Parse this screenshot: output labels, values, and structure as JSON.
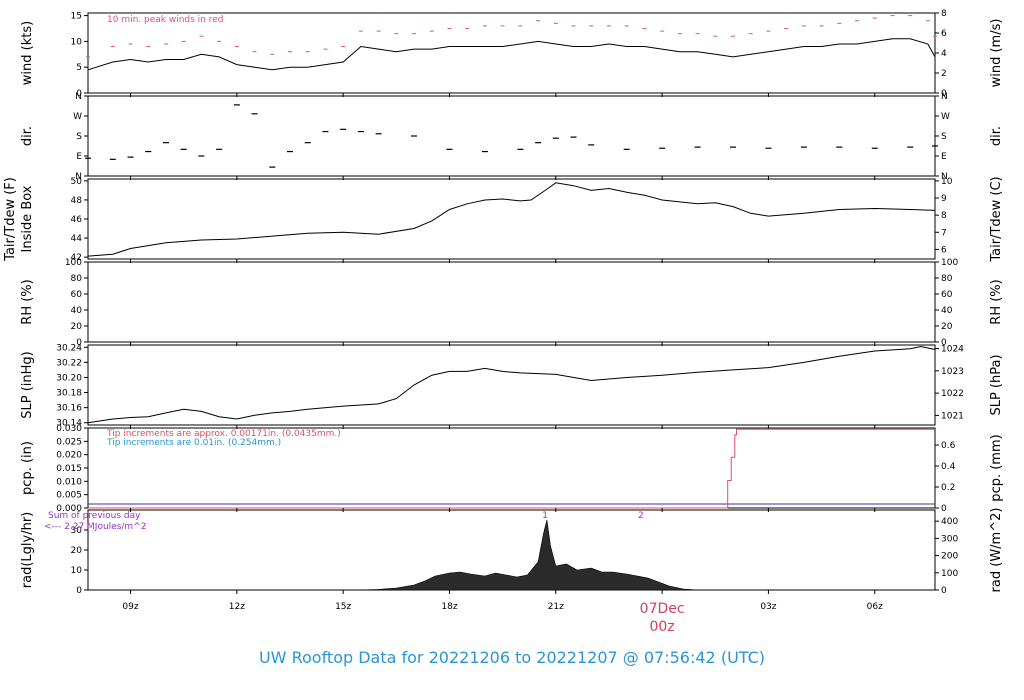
{
  "title": "UW Rooftop Data for 20221206  to  20221207 @ 07:56:42  (UTC)",
  "colors": {
    "peak": "#e0507a",
    "precip_red": "#e05060",
    "precip_blue": "#2a95d5",
    "purple": "#9b30d0",
    "date": "#d04060",
    "title": "#2a95d5"
  },
  "x_axis": {
    "range_hours": [
      7.8,
      31.7
    ],
    "ticks": [
      {
        "h": 9,
        "label": "09z"
      },
      {
        "h": 12,
        "label": "12z"
      },
      {
        "h": 15,
        "label": "15z"
      },
      {
        "h": 18,
        "label": "18z"
      },
      {
        "h": 21,
        "label": "21z"
      },
      {
        "h": 24,
        "label": ""
      },
      {
        "h": 27,
        "label": "03z"
      },
      {
        "h": 30,
        "label": "06z"
      }
    ],
    "date_label": "07Dec",
    "date_sublabel": "00z"
  },
  "chart_data": [
    {
      "id": "wind",
      "type": "line",
      "ylabel_left": "wind (kts)",
      "ylabel_right": "wind (m/s)",
      "ylim": [
        0,
        15.5
      ],
      "right_lim": [
        0,
        8
      ],
      "left_ticks": [
        "0",
        "5",
        "10",
        "15"
      ],
      "left_tick_values": [
        0,
        5,
        10,
        15
      ],
      "right_ticks": [
        "0",
        "2",
        "4",
        "6",
        "8"
      ],
      "right_tick_values": [
        0,
        2,
        4,
        6,
        8
      ],
      "annotation": "10 min. peak winds in red",
      "x": [
        7.8,
        8.5,
        9.0,
        9.5,
        10.0,
        10.5,
        11.0,
        11.5,
        12.0,
        12.5,
        13.0,
        13.5,
        14.0,
        14.5,
        15.0,
        15.5,
        16.0,
        16.5,
        17.0,
        17.5,
        18.0,
        18.5,
        19.0,
        19.5,
        20.0,
        20.5,
        21.0,
        21.5,
        22.0,
        22.5,
        23.0,
        23.5,
        24.0,
        24.5,
        25.0,
        25.5,
        26.0,
        26.5,
        27.0,
        27.5,
        28.0,
        28.5,
        29.0,
        29.5,
        30.0,
        30.5,
        31.0,
        31.5,
        31.7
      ],
      "values": [
        4.5,
        6,
        6.5,
        6,
        6.5,
        6.5,
        7.5,
        7,
        5.5,
        5,
        4.5,
        5,
        5,
        5.5,
        6,
        9,
        8.5,
        8,
        8.5,
        8.5,
        9,
        9,
        9,
        9,
        9.5,
        10,
        9.5,
        9,
        9,
        9.5,
        9,
        9,
        8.5,
        8,
        8,
        7.5,
        7,
        7.5,
        8,
        8.5,
        9,
        9,
        9.5,
        9.5,
        10,
        10.5,
        10.5,
        9.5,
        7
      ],
      "peak_values": [
        7,
        9,
        9.5,
        9,
        9.5,
        10,
        11,
        10,
        9,
        8,
        7.5,
        8,
        8,
        8.5,
        9,
        12,
        12,
        11.5,
        11.5,
        12,
        12.5,
        12.5,
        13,
        13,
        13,
        14,
        13.5,
        13,
        13,
        13,
        13,
        12.5,
        12,
        11.5,
        11.5,
        11,
        11,
        11.5,
        12,
        12.5,
        13,
        13,
        13.5,
        14,
        14.5,
        15,
        15,
        14,
        11
      ]
    },
    {
      "id": "dir",
      "type": "scatter",
      "ylabel_left": "dir.",
      "ylabel_right": "dir.",
      "ylim": [
        0,
        360
      ],
      "left_ticks": [
        "N",
        "E",
        "S",
        "W",
        "N"
      ],
      "left_tick_values": [
        0,
        90,
        180,
        270,
        360
      ],
      "x": [
        7.8,
        8.5,
        9.0,
        9.5,
        10.0,
        10.5,
        11.0,
        11.5,
        12.0,
        12.5,
        13.0,
        13.5,
        14.0,
        14.5,
        15.0,
        15.5,
        16.0,
        17.0,
        18.0,
        19.0,
        20.0,
        20.5,
        21.0,
        21.5,
        22.0,
        23.0,
        24.0,
        25.0,
        26.0,
        27.0,
        28.0,
        29.0,
        30.0,
        31.0,
        31.7
      ],
      "values": [
        80,
        75,
        85,
        110,
        150,
        120,
        90,
        120,
        320,
        280,
        40,
        110,
        150,
        200,
        210,
        200,
        190,
        180,
        120,
        110,
        120,
        150,
        170,
        175,
        140,
        120,
        125,
        130,
        130,
        125,
        130,
        130,
        125,
        130,
        135
      ]
    },
    {
      "id": "temp",
      "type": "line",
      "ylabel_left": "Tair/Tdew (F)",
      "ylabel_left2": "Inside Box",
      "ylabel_right": "Tair/Tdew (C)",
      "ylim": [
        41.8,
        50.2
      ],
      "right_lim": [
        5.44,
        10.11
      ],
      "left_ticks": [
        "42",
        "44",
        "46",
        "48",
        "50"
      ],
      "left_tick_values": [
        42,
        44,
        46,
        48,
        50
      ],
      "right_ticks": [
        "6",
        "7",
        "8",
        "9",
        "10"
      ],
      "right_tick_values": [
        6,
        7,
        8,
        9,
        10
      ],
      "x": [
        7.8,
        8.5,
        9.0,
        10.0,
        11.0,
        12.0,
        13.0,
        14.0,
        15.0,
        16.0,
        17.0,
        17.5,
        18.0,
        18.5,
        19.0,
        19.5,
        20.0,
        20.3,
        20.7,
        21.0,
        21.5,
        22.0,
        22.5,
        23.0,
        23.5,
        24.0,
        24.5,
        25.0,
        25.5,
        26.0,
        26.5,
        27.0,
        28.0,
        29.0,
        30.0,
        31.0,
        31.7
      ],
      "values": [
        42.1,
        42.3,
        42.9,
        43.5,
        43.8,
        43.9,
        44.2,
        44.5,
        44.6,
        44.4,
        45.0,
        45.8,
        47.0,
        47.6,
        48.0,
        48.1,
        47.9,
        48.0,
        49.0,
        49.8,
        49.5,
        49.0,
        49.2,
        48.8,
        48.5,
        48.0,
        47.8,
        47.6,
        47.7,
        47.3,
        46.6,
        46.3,
        46.6,
        47.0,
        47.1,
        47.0,
        46.9
      ]
    },
    {
      "id": "rh",
      "type": "line",
      "ylabel_left": "RH (%)",
      "ylabel_right": "RH (%)",
      "ylim": [
        0,
        100
      ],
      "left_ticks": [
        "0",
        "20",
        "40",
        "60",
        "80",
        "100"
      ],
      "left_tick_values": [
        0,
        20,
        40,
        60,
        80,
        100
      ],
      "right_ticks": [
        "0",
        "20",
        "40",
        "60",
        "80",
        "100"
      ],
      "right_tick_values": [
        0,
        20,
        40,
        60,
        80,
        100
      ],
      "x": [],
      "values": []
    },
    {
      "id": "slp",
      "type": "line",
      "ylabel_left": "SLP (inHg)",
      "ylabel_right": "SLP (hPa)",
      "ylim": [
        30.137,
        30.243
      ],
      "right_lim": [
        1020.57,
        1024.16
      ],
      "left_ticks": [
        "30.14",
        "30.16",
        "30.18",
        "30.20",
        "30.22",
        "30.24"
      ],
      "left_tick_values": [
        30.14,
        30.16,
        30.18,
        30.2,
        30.22,
        30.24
      ],
      "right_ticks": [
        "1021",
        "1022",
        "1023",
        "1024"
      ],
      "right_tick_values": [
        1021,
        1022,
        1023,
        1024
      ],
      "x": [
        7.8,
        8.5,
        9.0,
        9.5,
        10.0,
        10.5,
        11.0,
        11.5,
        12.0,
        12.5,
        13.0,
        13.5,
        14.0,
        15.0,
        16.0,
        16.5,
        17.0,
        17.5,
        18.0,
        18.5,
        19.0,
        19.5,
        20.0,
        21.0,
        22.0,
        23.0,
        24.0,
        25.0,
        26.0,
        27.0,
        28.0,
        29.0,
        30.0,
        31.0,
        31.3,
        31.7
      ],
      "values": [
        30.14,
        30.145,
        30.147,
        30.148,
        30.153,
        30.158,
        30.155,
        30.148,
        30.145,
        30.15,
        30.153,
        30.155,
        30.158,
        30.162,
        30.165,
        30.172,
        30.19,
        30.203,
        30.208,
        30.208,
        30.212,
        30.208,
        30.206,
        30.204,
        30.196,
        30.2,
        30.203,
        30.207,
        30.21,
        30.213,
        30.22,
        30.228,
        30.235,
        30.238,
        30.241,
        30.237
      ]
    },
    {
      "id": "precip",
      "type": "line",
      "ylabel_left": "pcp. (in)",
      "ylabel_right": "pcp. (mm)",
      "ylim": [
        0,
        0.03
      ],
      "right_lim": [
        0,
        0.762
      ],
      "left_ticks": [
        "0.000",
        "0.005",
        "0.010",
        "0.015",
        "0.020",
        "0.025",
        "0.030"
      ],
      "left_tick_values": [
        0,
        0.005,
        0.01,
        0.015,
        0.02,
        0.025,
        0.03
      ],
      "right_ticks": [
        "0",
        "0.2",
        "0.4",
        "0.6"
      ],
      "right_tick_values": [
        0,
        0.2,
        0.4,
        0.6
      ],
      "annotation_red": "Tip increments are approx. 0.00171in. (0.0435mm.)",
      "annotation_blue": "Tip increments are 0.01in. (0.254mm.)",
      "x": [
        7.8,
        25.85,
        25.85,
        25.95,
        25.95,
        26.05,
        26.05,
        26.1,
        26.1,
        31.7
      ],
      "values": [
        0,
        0,
        0.0103,
        0.0103,
        0.019,
        0.019,
        0.0275,
        0.0275,
        0.0295,
        0.0295
      ]
    },
    {
      "id": "rad",
      "type": "area",
      "ylabel_left": "rad(Lgly/hr)",
      "ylabel_right": "rad (W/m^2)",
      "ylim": [
        0,
        40
      ],
      "right_lim": [
        0,
        465
      ],
      "left_ticks": [
        "0",
        "10",
        "20",
        "30"
      ],
      "left_tick_values": [
        0,
        10,
        20,
        30
      ],
      "right_ticks": [
        "0",
        "100",
        "200",
        "300",
        "400"
      ],
      "right_tick_values": [
        0,
        100,
        200,
        300,
        400
      ],
      "annotation_purple1": "Sum of previous day",
      "annotation_purple2": "<--- 2.27 MJoules/m^2",
      "marker_labels": [
        {
          "h": 20.7,
          "label": "1"
        },
        {
          "h": 23.4,
          "label": "2"
        }
      ],
      "x": [
        15.4,
        16.0,
        16.5,
        17.0,
        17.3,
        17.6,
        18.0,
        18.3,
        18.6,
        19.0,
        19.3,
        19.6,
        19.9,
        20.2,
        20.5,
        20.65,
        20.75,
        20.85,
        21.0,
        21.3,
        21.6,
        22.0,
        22.3,
        22.6,
        23.0,
        23.3,
        23.6,
        23.9,
        24.2,
        24.6,
        25.0
      ],
      "values": [
        0,
        0.3,
        1,
        2.5,
        4.5,
        7,
        8.5,
        9,
        8,
        7,
        8.5,
        7.5,
        6.5,
        7.5,
        14,
        28,
        35,
        22,
        12,
        13,
        10,
        11,
        9,
        9,
        8,
        7,
        6,
        4,
        2,
        0.5,
        0
      ]
    }
  ]
}
